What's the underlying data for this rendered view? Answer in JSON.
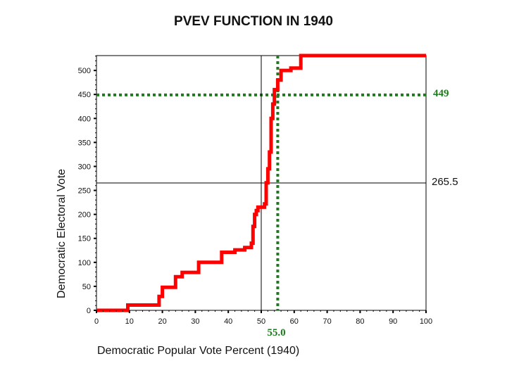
{
  "chart_data": {
    "type": "line",
    "title": "PVEV FUNCTION IN 1940",
    "xlabel": "Democratic Popular Vote Percent (1940)",
    "ylabel": "Democratic Electoral Vote",
    "xlim": [
      0,
      100
    ],
    "ylim": [
      0,
      531
    ],
    "x_ticks": [
      0,
      10,
      20,
      30,
      40,
      50,
      60,
      70,
      80,
      90,
      100
    ],
    "y_ticks": [
      0,
      50,
      100,
      150,
      200,
      250,
      300,
      350,
      400,
      450,
      500
    ],
    "grid": false,
    "series": [
      {
        "name": "PVEV function",
        "color": "#ff0000",
        "points": [
          [
            0,
            0
          ],
          [
            9.5,
            0
          ],
          [
            9.5,
            11
          ],
          [
            19,
            11
          ],
          [
            19,
            29
          ],
          [
            20,
            29
          ],
          [
            20,
            48
          ],
          [
            24,
            48
          ],
          [
            24,
            70
          ],
          [
            26,
            70
          ],
          [
            26,
            79
          ],
          [
            31,
            79
          ],
          [
            31,
            100
          ],
          [
            38,
            100
          ],
          [
            38,
            121
          ],
          [
            42,
            121
          ],
          [
            42,
            126
          ],
          [
            45,
            126
          ],
          [
            45,
            131
          ],
          [
            47,
            131
          ],
          [
            47,
            140
          ],
          [
            47.5,
            140
          ],
          [
            47.5,
            175
          ],
          [
            48,
            175
          ],
          [
            48,
            200
          ],
          [
            48.5,
            200
          ],
          [
            48.5,
            208
          ],
          [
            49,
            208
          ],
          [
            49,
            215
          ],
          [
            51,
            215
          ],
          [
            51,
            222
          ],
          [
            51.5,
            222
          ],
          [
            51.5,
            266
          ],
          [
            52,
            266
          ],
          [
            52,
            295
          ],
          [
            52.5,
            295
          ],
          [
            52.5,
            330
          ],
          [
            53,
            330
          ],
          [
            53,
            400
          ],
          [
            53.5,
            400
          ],
          [
            53.5,
            430
          ],
          [
            54,
            430
          ],
          [
            54,
            460
          ],
          [
            55,
            460
          ],
          [
            55,
            480
          ],
          [
            56,
            480
          ],
          [
            56,
            500
          ],
          [
            59,
            500
          ],
          [
            59,
            505
          ],
          [
            62,
            505
          ],
          [
            62,
            531
          ],
          [
            100,
            531
          ]
        ]
      }
    ],
    "reference_lines": [
      {
        "orientation": "horizontal",
        "value": 449,
        "label": "449",
        "color": "#1e7a1e",
        "style": "dotted"
      },
      {
        "orientation": "vertical",
        "value": 55.0,
        "label": "55.0",
        "color": "#1e7a1e",
        "style": "dotted"
      },
      {
        "orientation": "horizontal",
        "value": 265.5,
        "label": "265.5",
        "color": "#000000",
        "style": "solid"
      },
      {
        "orientation": "vertical",
        "value": 50,
        "label": "",
        "color": "#000000",
        "style": "solid"
      }
    ]
  }
}
